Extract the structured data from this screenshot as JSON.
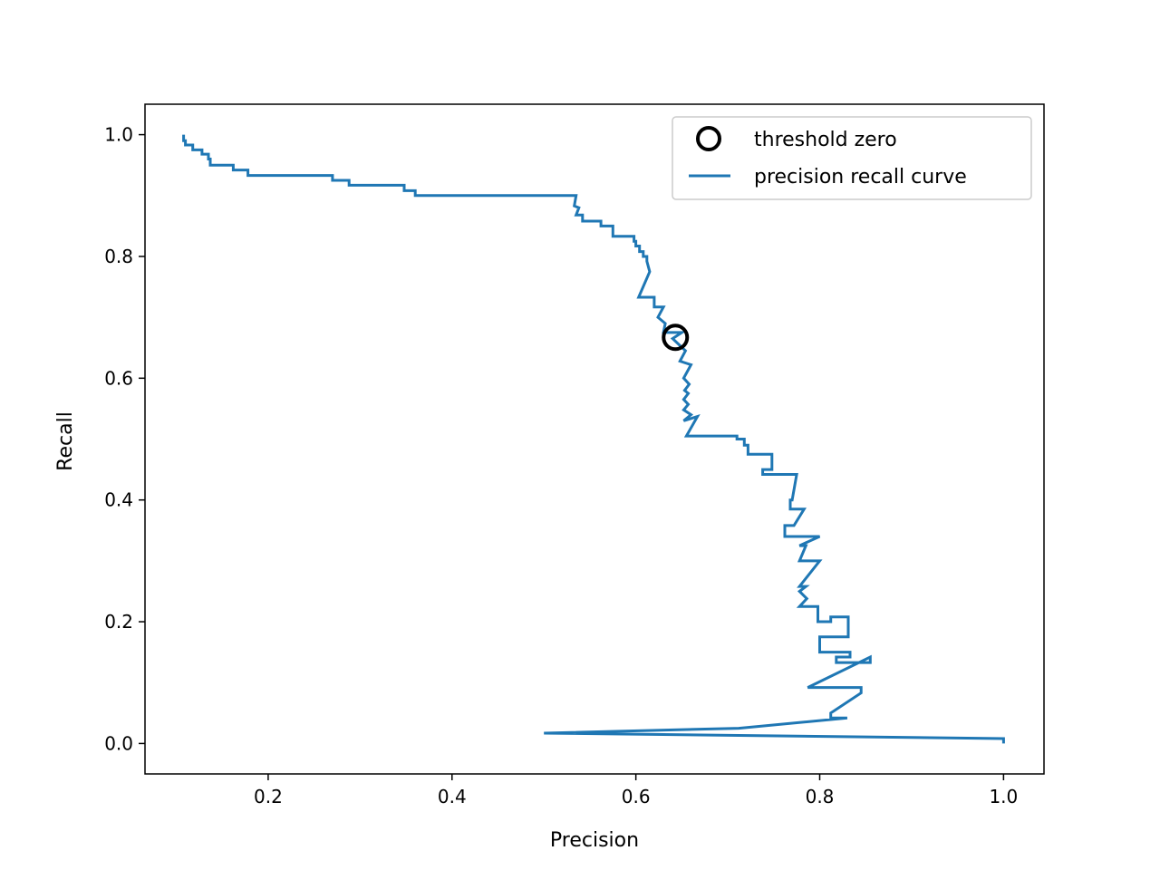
{
  "chart_data": {
    "type": "line",
    "title": "",
    "xlabel": "Precision",
    "ylabel": "Recall",
    "xlim": [
      0.066,
      1.044
    ],
    "ylim": [
      -0.05,
      1.05
    ],
    "xticks": [
      0.2,
      0.4,
      0.6,
      0.8,
      1.0
    ],
    "yticks": [
      0.0,
      0.2,
      0.4,
      0.6,
      0.8,
      1.0
    ],
    "xtick_labels": [
      "0.2",
      "0.4",
      "0.6",
      "0.8",
      "1.0"
    ],
    "ytick_labels": [
      "0.0",
      "0.2",
      "0.4",
      "0.6",
      "0.8",
      "1.0"
    ],
    "grid": false,
    "legend_position": "top-right",
    "series": [
      {
        "name": "precision recall curve",
        "color": "#1f77b4",
        "style": "line",
        "x": [
          0.108,
          0.108,
          0.11,
          0.11,
          0.118,
          0.118,
          0.128,
          0.128,
          0.135,
          0.135,
          0.137,
          0.137,
          0.162,
          0.162,
          0.178,
          0.178,
          0.27,
          0.27,
          0.288,
          0.288,
          0.348,
          0.348,
          0.36,
          0.36,
          0.535,
          0.533,
          0.538,
          0.535,
          0.542,
          0.542,
          0.562,
          0.562,
          0.575,
          0.575,
          0.598,
          0.598,
          0.6,
          0.6,
          0.604,
          0.604,
          0.608,
          0.608,
          0.612,
          0.612,
          0.615,
          0.603,
          0.62,
          0.62,
          0.63,
          0.624,
          0.632,
          0.63,
          0.65,
          0.64,
          0.654,
          0.648,
          0.66,
          0.652,
          0.658,
          0.653,
          0.657,
          0.652,
          0.657,
          0.652,
          0.66,
          0.652,
          0.667,
          0.655,
          0.71,
          0.71,
          0.718,
          0.718,
          0.722,
          0.722,
          0.748,
          0.748,
          0.738,
          0.738,
          0.775,
          0.77,
          0.768,
          0.768,
          0.783,
          0.772,
          0.762,
          0.762,
          0.8,
          0.778,
          0.785,
          0.778,
          0.8,
          0.778,
          0.785,
          0.778,
          0.786,
          0.778,
          0.798,
          0.798,
          0.812,
          0.812,
          0.831,
          0.831,
          0.8,
          0.8,
          0.833,
          0.833,
          0.818,
          0.818,
          0.855,
          0.855,
          0.787,
          0.845,
          0.845,
          0.812,
          0.812,
          0.83,
          0.712,
          0.5,
          1.0,
          1.0
        ],
        "y": [
          1.0,
          0.99,
          0.99,
          0.983,
          0.983,
          0.975,
          0.975,
          0.968,
          0.968,
          0.96,
          0.96,
          0.95,
          0.95,
          0.942,
          0.942,
          0.933,
          0.933,
          0.925,
          0.925,
          0.917,
          0.917,
          0.908,
          0.908,
          0.9,
          0.9,
          0.883,
          0.88,
          0.868,
          0.868,
          0.858,
          0.858,
          0.85,
          0.85,
          0.833,
          0.833,
          0.825,
          0.825,
          0.817,
          0.817,
          0.808,
          0.808,
          0.8,
          0.8,
          0.792,
          0.775,
          0.733,
          0.733,
          0.717,
          0.717,
          0.7,
          0.69,
          0.675,
          0.675,
          0.665,
          0.645,
          0.628,
          0.622,
          0.6,
          0.59,
          0.58,
          0.575,
          0.565,
          0.557,
          0.548,
          0.54,
          0.53,
          0.537,
          0.505,
          0.505,
          0.5,
          0.5,
          0.49,
          0.49,
          0.475,
          0.475,
          0.45,
          0.45,
          0.442,
          0.442,
          0.4,
          0.4,
          0.385,
          0.385,
          0.358,
          0.358,
          0.34,
          0.34,
          0.325,
          0.325,
          0.3,
          0.3,
          0.258,
          0.258,
          0.25,
          0.238,
          0.225,
          0.225,
          0.2,
          0.2,
          0.208,
          0.208,
          0.175,
          0.175,
          0.15,
          0.15,
          0.142,
          0.142,
          0.133,
          0.133,
          0.142,
          0.092,
          0.092,
          0.083,
          0.05,
          0.042,
          0.042,
          0.025,
          0.017,
          0.008,
          0.0
        ]
      },
      {
        "name": "threshold zero",
        "color": "#000000",
        "style": "marker-o-open",
        "x": [
          0.643
        ],
        "y": [
          0.667
        ]
      }
    ]
  }
}
